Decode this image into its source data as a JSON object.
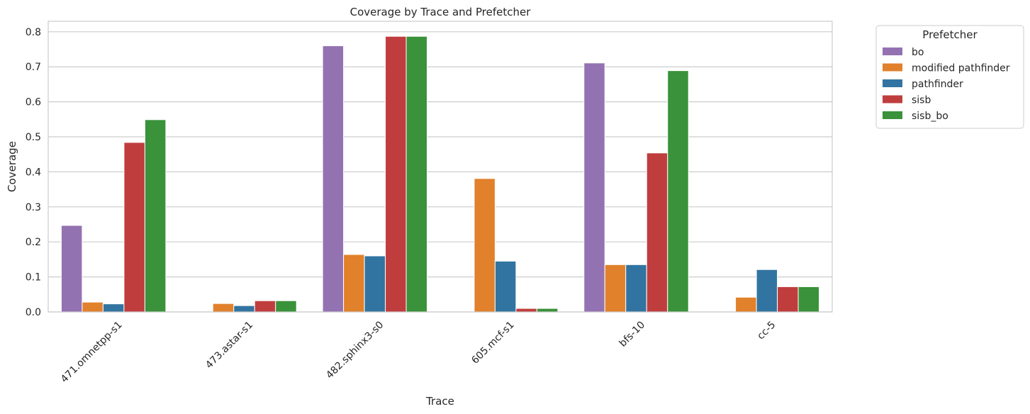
{
  "chart_data": {
    "type": "bar",
    "title": "Coverage by Trace and Prefetcher",
    "xlabel": "Trace",
    "ylabel": "Coverage",
    "ylim": [
      0,
      0.83
    ],
    "yticks": [
      "0.0",
      "0.1",
      "0.2",
      "0.3",
      "0.4",
      "0.5",
      "0.6",
      "0.7",
      "0.8"
    ],
    "grid": true,
    "legend_title": "Prefetcher",
    "legend_position": "outside-top-right",
    "categories": [
      "471.omnetpp-s1",
      "473.astar-s1",
      "482.sphinx3-s0",
      "605.mcf-s1",
      "bfs-10",
      "cc-5"
    ],
    "series": [
      {
        "name": "bo",
        "color": "#9372b2",
        "values": [
          0.247,
          0.0,
          0.76,
          0.0,
          0.711,
          0.0
        ]
      },
      {
        "name": "modified pathfinder",
        "color": "#e1812c",
        "values": [
          0.028,
          0.024,
          0.164,
          0.381,
          0.135,
          0.042
        ]
      },
      {
        "name": "pathfinder",
        "color": "#3274a1",
        "values": [
          0.023,
          0.018,
          0.16,
          0.145,
          0.135,
          0.121
        ]
      },
      {
        "name": "sisb",
        "color": "#c03d3e",
        "values": [
          0.484,
          0.032,
          0.787,
          0.01,
          0.454,
          0.072
        ]
      },
      {
        "name": "sisb_bo",
        "color": "#3a923a",
        "values": [
          0.549,
          0.032,
          0.787,
          0.01,
          0.689,
          0.072
        ]
      }
    ]
  }
}
